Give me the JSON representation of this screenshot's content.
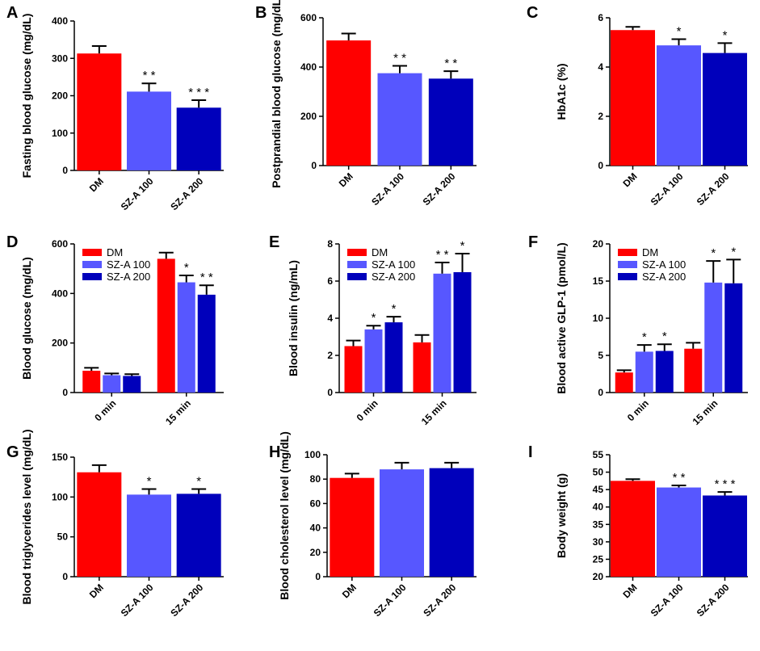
{
  "colors": {
    "DM": "#ff0000",
    "SZ-A 100": "#5757ff",
    "SZ-A 200": "#0000bb"
  },
  "chart_data": [
    {
      "panel": "A",
      "type": "bar",
      "ylabel": "Fasting blood glucose (mg/dL)",
      "ylim": [
        0,
        400
      ],
      "yticks": [
        0,
        100,
        200,
        300,
        400
      ],
      "categories": [
        "DM",
        "SZ-A 100",
        "SZ-A 200"
      ],
      "values": [
        313,
        211,
        168
      ],
      "errors": [
        20,
        22,
        20
      ],
      "significance": [
        "",
        "**",
        "***"
      ]
    },
    {
      "panel": "B",
      "type": "bar",
      "ylabel": "Postprandial blood glucose (mg/dL)",
      "ylim": [
        0,
        600
      ],
      "yticks": [
        0,
        200,
        400,
        600
      ],
      "categories": [
        "DM",
        "SZ-A 100",
        "SZ-A 200"
      ],
      "values": [
        508,
        375,
        353
      ],
      "errors": [
        28,
        30,
        30
      ],
      "significance": [
        "",
        "**",
        "**"
      ]
    },
    {
      "panel": "C",
      "type": "bar",
      "ylabel": "HbA1c (%)",
      "ylim": [
        0,
        6
      ],
      "yticks": [
        0,
        2,
        4,
        6
      ],
      "categories": [
        "DM",
        "SZ-A 100",
        "SZ-A 200"
      ],
      "values": [
        5.5,
        4.88,
        4.57
      ],
      "errors": [
        0.13,
        0.25,
        0.4
      ],
      "significance": [
        "",
        "*",
        "*"
      ]
    },
    {
      "panel": "D",
      "type": "bar",
      "ylabel": "Blood glucose (mg/dL)",
      "ylim": [
        0,
        600
      ],
      "yticks": [
        0,
        200,
        400,
        600
      ],
      "categories": [
        "0 min",
        "15 min"
      ],
      "series": [
        {
          "name": "DM",
          "values": [
            88,
            540
          ],
          "errors": [
            12,
            25
          ]
        },
        {
          "name": "SZ-A 100",
          "values": [
            70,
            445
          ],
          "errors": [
            7,
            28
          ]
        },
        {
          "name": "SZ-A 200",
          "values": [
            67,
            395
          ],
          "errors": [
            7,
            38
          ]
        }
      ],
      "significance": [
        [
          "",
          "",
          ""
        ],
        [
          "",
          "*",
          "**"
        ]
      ],
      "legend": "top-left"
    },
    {
      "panel": "E",
      "type": "bar",
      "ylabel": "Blood insulin (ng/mL)",
      "ylim": [
        0,
        8
      ],
      "yticks": [
        0,
        2,
        4,
        6,
        8
      ],
      "categories": [
        "0 min",
        "15 min"
      ],
      "series": [
        {
          "name": "DM",
          "values": [
            2.5,
            2.7
          ],
          "errors": [
            0.3,
            0.4
          ]
        },
        {
          "name": "SZ-A 100",
          "values": [
            3.4,
            6.4
          ],
          "errors": [
            0.2,
            0.6
          ]
        },
        {
          "name": "SZ-A 200",
          "values": [
            3.78,
            6.48
          ],
          "errors": [
            0.3,
            1.0
          ]
        }
      ],
      "significance": [
        [
          "",
          "*",
          "*"
        ],
        [
          "",
          "**",
          "*"
        ]
      ],
      "legend": "top-left"
    },
    {
      "panel": "F",
      "type": "bar",
      "ylabel": "Blood active GLP-1 (pmol/L)",
      "ylim": [
        0,
        20
      ],
      "yticks": [
        0,
        5,
        10,
        15,
        20
      ],
      "categories": [
        "0 min",
        "15 min"
      ],
      "series": [
        {
          "name": "DM",
          "values": [
            2.7,
            5.9
          ],
          "errors": [
            0.3,
            0.8
          ]
        },
        {
          "name": "SZ-A 100",
          "values": [
            5.5,
            14.8
          ],
          "errors": [
            0.9,
            2.9
          ]
        },
        {
          "name": "SZ-A 200",
          "values": [
            5.6,
            14.7
          ],
          "errors": [
            0.9,
            3.2
          ]
        }
      ],
      "significance": [
        [
          "",
          "*",
          "*"
        ],
        [
          "",
          "*",
          "*"
        ]
      ],
      "legend": "top-left"
    },
    {
      "panel": "G",
      "type": "bar",
      "ylabel": "Blood triglycerides level (mg/dL)",
      "ylim": [
        0,
        150
      ],
      "yticks": [
        0,
        50,
        100,
        150
      ],
      "categories": [
        "DM",
        "SZ-A 100",
        "SZ-A 200"
      ],
      "values": [
        131,
        103,
        104
      ],
      "errors": [
        9,
        7,
        6
      ],
      "significance": [
        "",
        "*",
        "*"
      ]
    },
    {
      "panel": "H",
      "type": "bar",
      "ylabel": "Blood cholesterol level (mg/dL)",
      "ylim": [
        0,
        100
      ],
      "yticks": [
        0,
        20,
        40,
        60,
        80,
        100
      ],
      "categories": [
        "DM",
        "SZ-A 100",
        "SZ-A 200"
      ],
      "values": [
        81,
        88,
        89
      ],
      "errors": [
        3.5,
        5.5,
        4.5
      ],
      "significance": [
        "",
        "",
        ""
      ]
    },
    {
      "panel": "I",
      "type": "bar",
      "ylabel": "Body weight (g)",
      "ylim": [
        20,
        55
      ],
      "yticks": [
        20,
        25,
        30,
        35,
        40,
        45,
        50,
        55
      ],
      "categories": [
        "DM",
        "SZ-A 100",
        "SZ-A 200"
      ],
      "values": [
        47.5,
        45.6,
        43.3
      ],
      "errors": [
        0.5,
        0.6,
        1.0
      ],
      "significance": [
        "",
        "**",
        "***"
      ]
    }
  ]
}
